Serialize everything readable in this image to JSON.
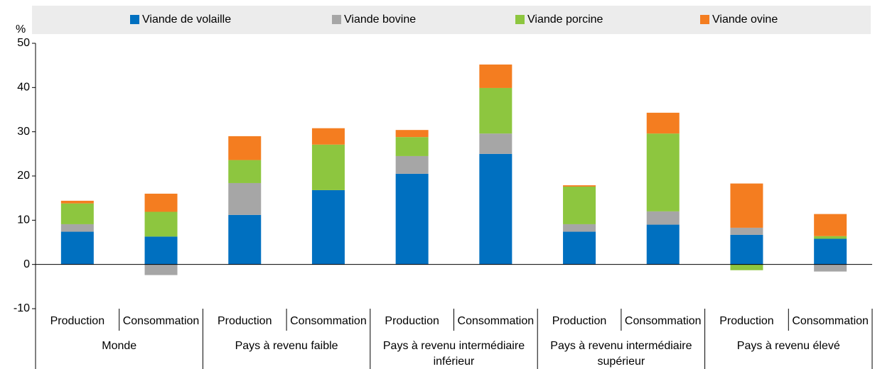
{
  "chart_data": {
    "type": "bar",
    "stacked": true,
    "y_label": "%",
    "groups": [
      "Monde",
      "Pays à revenu faible",
      "Pays à revenu intermédiaire inférieur",
      "Pays à revenu intermédiaire supérieur",
      "Pays à revenu élevé"
    ],
    "categories": [
      "Production",
      "Consommation",
      "Production",
      "Consommation",
      "Production",
      "Consommation",
      "Production",
      "Consommation",
      "Production",
      "Consommation"
    ],
    "series": [
      {
        "name": "Viande de volaille",
        "color": "#0070c0",
        "values": [
          7.4,
          6.3,
          11.2,
          16.8,
          20.5,
          25.0,
          7.4,
          9.0,
          6.7,
          5.8
        ]
      },
      {
        "name": "Viande bovine",
        "color": "#a6a6a6",
        "values": [
          1.7,
          -2.4,
          7.2,
          0,
          4.0,
          4.6,
          1.7,
          3.0,
          1.6,
          -1.6
        ]
      },
      {
        "name": "Viande porcine",
        "color": "#8dc63f",
        "values": [
          4.7,
          5.6,
          5.2,
          10.3,
          4.3,
          10.3,
          8.5,
          17.6,
          -1.3,
          0.6
        ]
      },
      {
        "name": "Viande ovine",
        "color": "#f47d20",
        "values": [
          0.6,
          4.1,
          5.4,
          3.7,
          1.6,
          5.3,
          0.3,
          4.7,
          10.0,
          5.0
        ]
      }
    ],
    "ylim": [
      -10,
      50
    ],
    "yticks": [
      -10,
      0,
      10,
      20,
      30,
      40,
      50
    ],
    "grid": false
  }
}
